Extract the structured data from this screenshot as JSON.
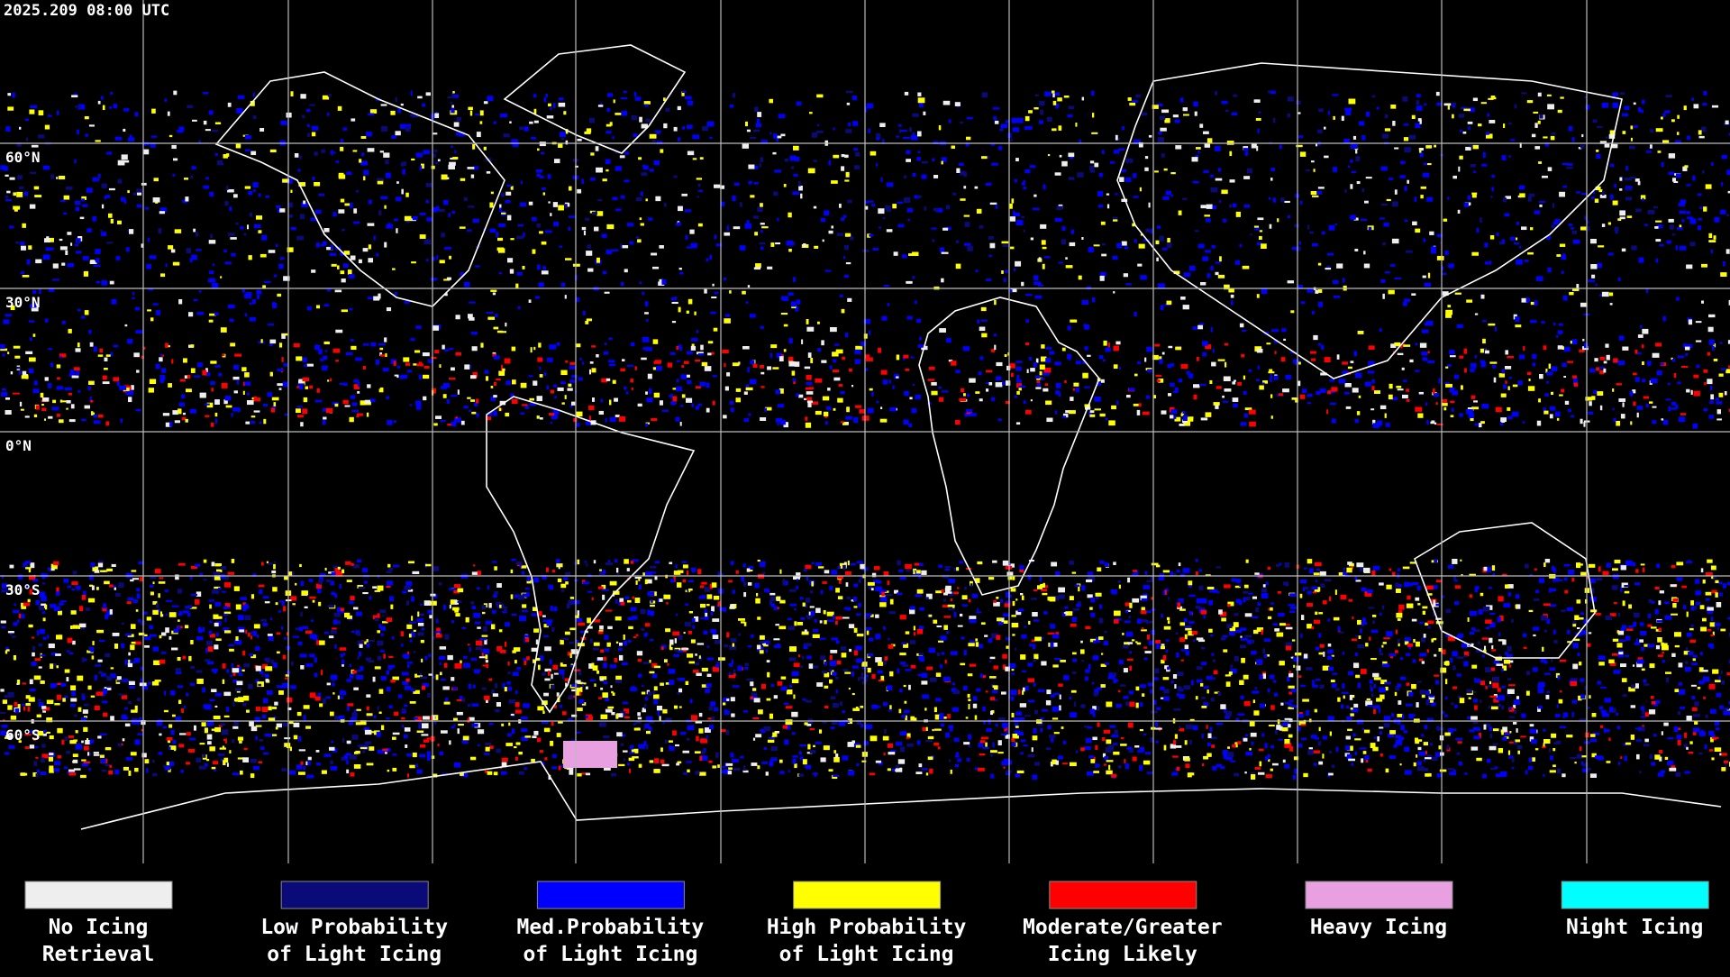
{
  "timestamp": "2025.209 08:00 UTC",
  "latitude_labels": [
    "60°N",
    "30°N",
    "0°N",
    "30°S",
    "60°S"
  ],
  "legend": [
    {
      "label": [
        "No Icing",
        "Retrieval"
      ],
      "color": "#eeeeee"
    },
    {
      "label": [
        "Low Probability",
        "of Light Icing"
      ],
      "color": "#0a0a78"
    },
    {
      "label": [
        "Med.Probability",
        "of Light Icing"
      ],
      "color": "#0000ff"
    },
    {
      "label": [
        "High Probability",
        "of Light Icing"
      ],
      "color": "#ffff00"
    },
    {
      "label": [
        "Moderate/Greater",
        "Icing Likely"
      ],
      "color": "#ff0000"
    },
    {
      "label": [
        "Heavy Icing"
      ],
      "color": "#e8a0e0"
    },
    {
      "label": [
        "Night Icing"
      ],
      "color": "#00ffff"
    }
  ]
}
